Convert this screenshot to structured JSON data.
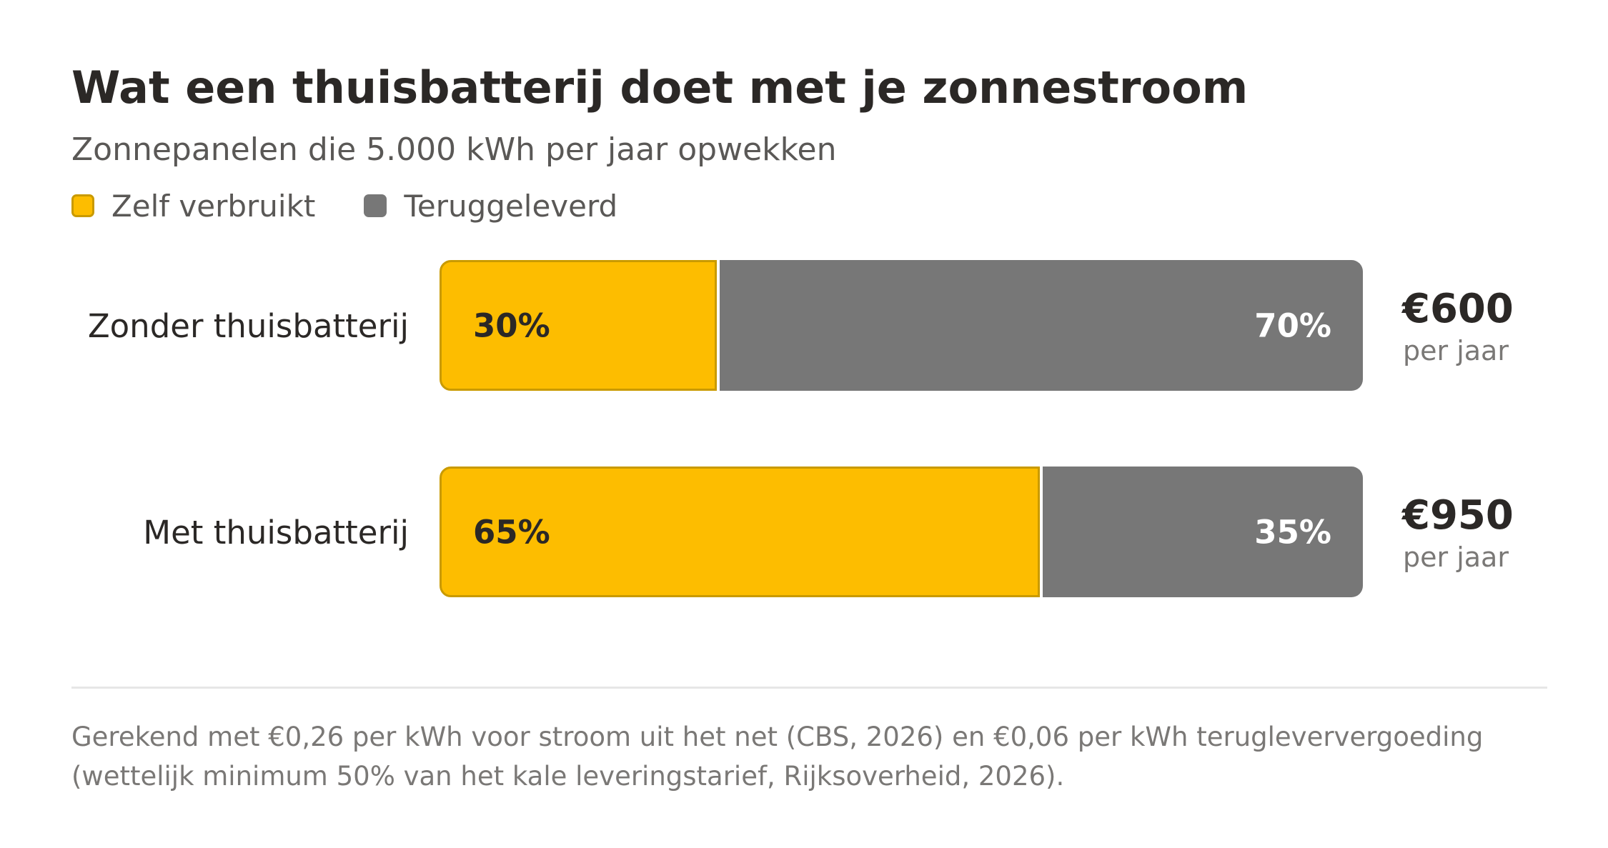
{
  "title": "Wat een thuisbatterij doet met je zonnestroom",
  "subtitle": "Zonnepanelen die 5.000 kWh per jaar opwekken",
  "legend": [
    {
      "label": "Zelf verbruikt",
      "color": "#fdbd00"
    },
    {
      "label": "Teruggeleverd",
      "color": "#777777"
    }
  ],
  "colors": {
    "self": "#fdbd00",
    "feed": "#777777",
    "self_border": "#c99a00"
  },
  "chart_data": {
    "type": "bar",
    "orientation": "horizontal",
    "stacked": true,
    "percent": true,
    "title": "Wat een thuisbatterij doet met je zonnestroom",
    "subtitle": "Zonnepanelen die 5.000 kWh per jaar opwekken",
    "categories": [
      "Zonder thuisbatterij",
      "Met thuisbatterij"
    ],
    "series": [
      {
        "name": "Zelf verbruikt",
        "values": [
          30,
          65
        ],
        "labels": [
          "30%",
          "65%"
        ]
      },
      {
        "name": "Teruggeleverd",
        "values": [
          70,
          35
        ],
        "labels": [
          "70%",
          "35%"
        ]
      }
    ],
    "annotations": [
      {
        "category": "Zonder thuisbatterij",
        "amount": "€600",
        "unit": "per jaar"
      },
      {
        "category": "Met thuisbatterij",
        "amount": "€950",
        "unit": "per jaar"
      }
    ],
    "xlim": [
      0,
      100
    ],
    "legend_position": "top-left",
    "grid": false
  },
  "footnote": "Gerekend met €0,26 per kWh voor stroom uit het net (CBS, 2026) en €0,06 per kWh terugleververgoeding (wettelijk minimum 50% van het kale leveringstarief, Rijksoverheid, 2026)."
}
